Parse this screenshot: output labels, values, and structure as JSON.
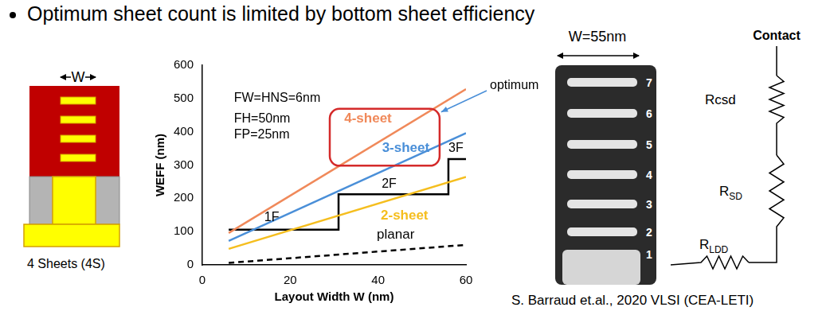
{
  "title": "Optimum sheet count is limited by bottom sheet efficiency",
  "chart_data": {
    "type": "line",
    "x_label": "Layout Width W (nm)",
    "y_label": "WEFF (nm)",
    "xlim": [
      0,
      60
    ],
    "xticks": [
      0,
      20,
      40,
      60
    ],
    "ylim": [
      0,
      600
    ],
    "yticks": [
      0,
      100,
      200,
      300,
      400,
      500,
      600
    ],
    "grid": false,
    "annotations": [
      "FW=HNS=6nm",
      "FH=50nm",
      "FP=25nm"
    ],
    "callout": "optimum",
    "series": [
      {
        "name": "4-sheet",
        "color": "#f0895a",
        "x": [
          6,
          60
        ],
        "values": [
          96,
          528
        ],
        "line_style": "solid",
        "marker": "none"
      },
      {
        "name": "3-sheet",
        "color": "#4a8fd8",
        "x": [
          6,
          60
        ],
        "values": [
          72,
          396
        ],
        "line_style": "solid",
        "marker": "none"
      },
      {
        "name": "2-sheet",
        "color": "#f5be1e",
        "x": [
          6,
          60
        ],
        "values": [
          48,
          264
        ],
        "line_style": "solid",
        "marker": "none"
      },
      {
        "name": "planar",
        "color": "#000000",
        "x": [
          6,
          60
        ],
        "values": [
          6,
          60
        ],
        "line_style": "dashed",
        "marker": "none"
      },
      {
        "color": "#000000",
        "x": [
          6,
          31,
          31,
          56,
          56,
          60
        ],
        "values": [
          106,
          106,
          212,
          212,
          318,
          318
        ],
        "step_labels": [
          "1F",
          "2F",
          "3F"
        ],
        "line_style": "solid",
        "marker": "none"
      }
    ]
  },
  "left_diagram": {
    "width_label": "W",
    "caption": "4 Sheets (4S)"
  },
  "tem_image": {
    "width_label": "W=55nm",
    "sheet_numbers": [
      1,
      2,
      3,
      4,
      5,
      6,
      7
    ]
  },
  "circuit": {
    "top": "Contact",
    "resistors": [
      "Rcsd",
      "RSD",
      "RLDD"
    ]
  },
  "citation": "S. Barraud et.al., 2020 VLSI (CEA-LETI)"
}
